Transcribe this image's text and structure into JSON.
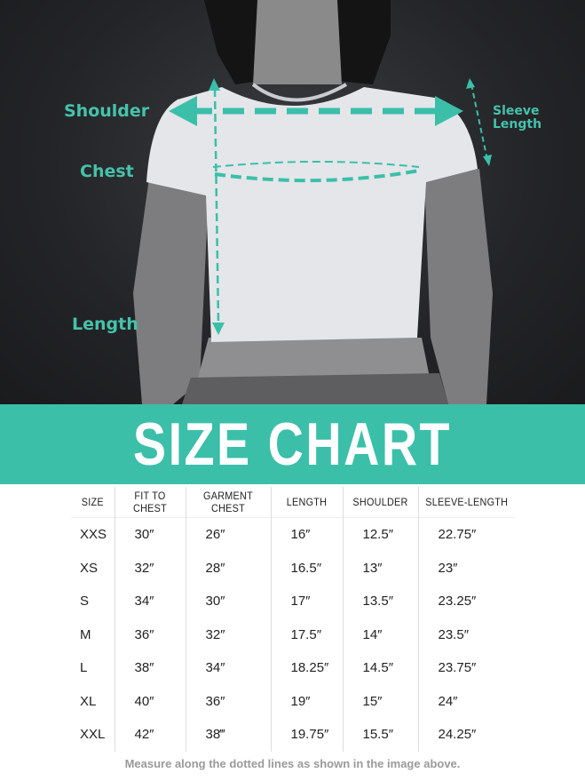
{
  "measure_labels": {
    "shoulder": "Shoulder",
    "chest": "Chest",
    "length": "Length",
    "sleeve_line1": "Sleeve",
    "sleeve_line2": "Length"
  },
  "colors": {
    "accent": "#3bbfa9",
    "label": "#45c2ac",
    "footer": "#9a9a9a"
  },
  "banner": {
    "title": "SIZE CHART"
  },
  "table": {
    "headers": [
      "SIZE",
      "FIT TO CHEST",
      "GARMENT CHEST",
      "LENGTH",
      "SHOULDER",
      "SLEEVE-LENGTH"
    ],
    "rows": [
      [
        "XXS",
        "30″",
        "26″",
        "16″",
        "12.5″",
        "22.75″"
      ],
      [
        "XS",
        "32″",
        "28″",
        "16.5″",
        "13″",
        "23″"
      ],
      [
        "S",
        "34″",
        "30″",
        "17″",
        "13.5″",
        "23.25″"
      ],
      [
        "M",
        "36″",
        "32″",
        "17.5″",
        "14″",
        "23.5″"
      ],
      [
        "L",
        "38″",
        "34″",
        "18.25″",
        "14.5″",
        "23.75″"
      ],
      [
        "XL",
        "40″",
        "36″",
        "19″",
        "15″",
        "24″"
      ],
      [
        "XXL",
        "42″",
        "38‴",
        "19.75″",
        "15.5″",
        "24.25″"
      ]
    ]
  },
  "footer": {
    "note": "Measure along the dotted lines as shown in the image above."
  }
}
